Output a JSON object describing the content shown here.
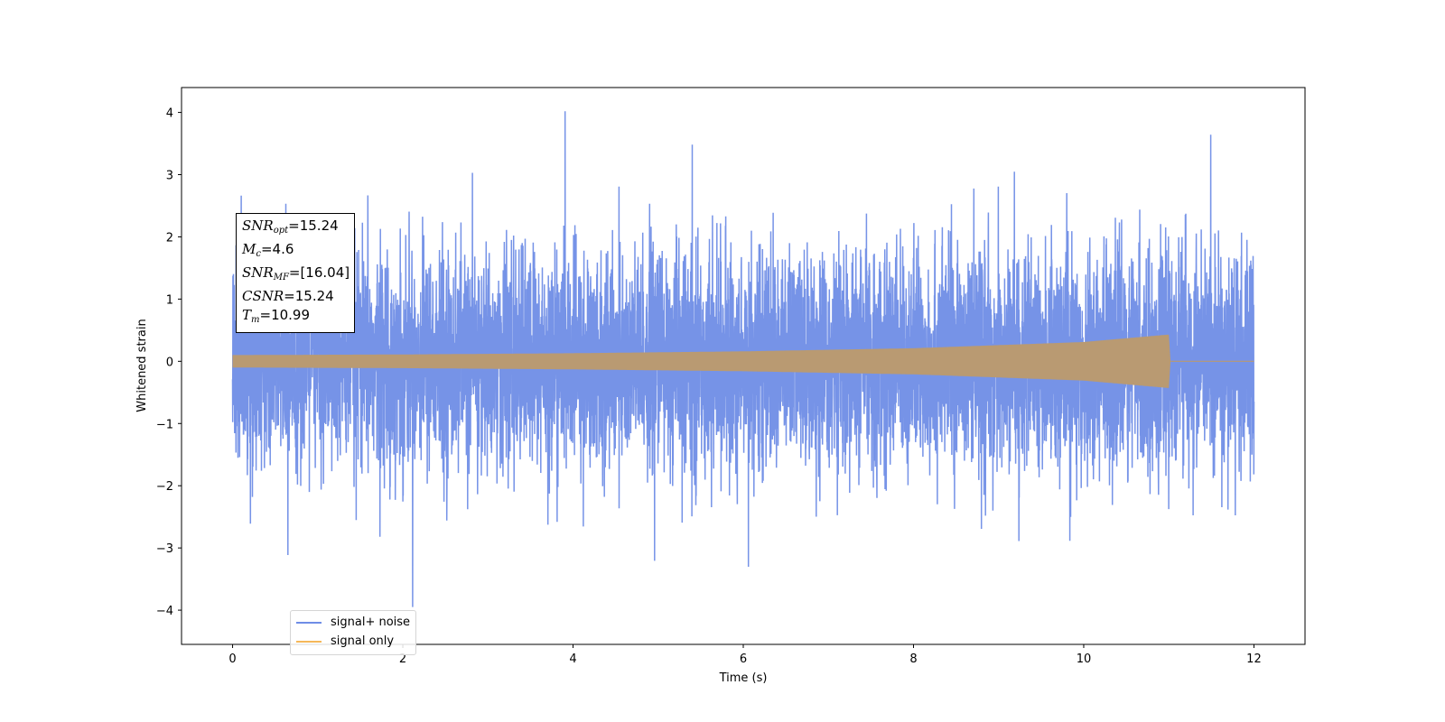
{
  "chart_data": {
    "type": "line",
    "xlabel": "Time (s)",
    "ylabel": "Whitened strain",
    "xlim": [
      -0.6,
      12.6
    ],
    "ylim": [
      -4.55,
      4.4
    ],
    "x_ticks": [
      0,
      2,
      4,
      6,
      8,
      10,
      12
    ],
    "y_ticks": [
      -4,
      -3,
      -2,
      -1,
      0,
      1,
      2,
      3,
      4
    ],
    "y_tick_labels": [
      "−4",
      "−3",
      "−2",
      "−1",
      "0",
      "1",
      "2",
      "3",
      "4"
    ],
    "grid": false,
    "legend_position": "lower-left",
    "series": [
      {
        "name": "signal+ noise",
        "color": "#6f8de6",
        "x_range": [
          0,
          12
        ],
        "noise_std": 0.85,
        "min": -3.95,
        "max": 4.02
      },
      {
        "name": "signal only",
        "color": "#f5b85a",
        "x_range": [
          0,
          12
        ],
        "envelope_x": [
          0,
          2,
          4,
          6,
          8,
          10,
          11,
          11.01,
          12
        ],
        "envelope_amplitude": [
          0.1,
          0.11,
          0.13,
          0.16,
          0.21,
          0.31,
          0.43,
          0.0,
          0.0
        ]
      }
    ],
    "annotations": [
      {
        "symbol": "SNR",
        "sub": "opt",
        "value": "=15.24"
      },
      {
        "symbol": "M",
        "sub": "c",
        "value": "=4.6"
      },
      {
        "symbol": "SNR",
        "sub": "MF",
        "value": "=[16.04]"
      },
      {
        "symbol": "CSNR",
        "sub": "",
        "value": "=15.24"
      },
      {
        "symbol": "T",
        "sub": "m",
        "value": "=10.99"
      }
    ]
  }
}
